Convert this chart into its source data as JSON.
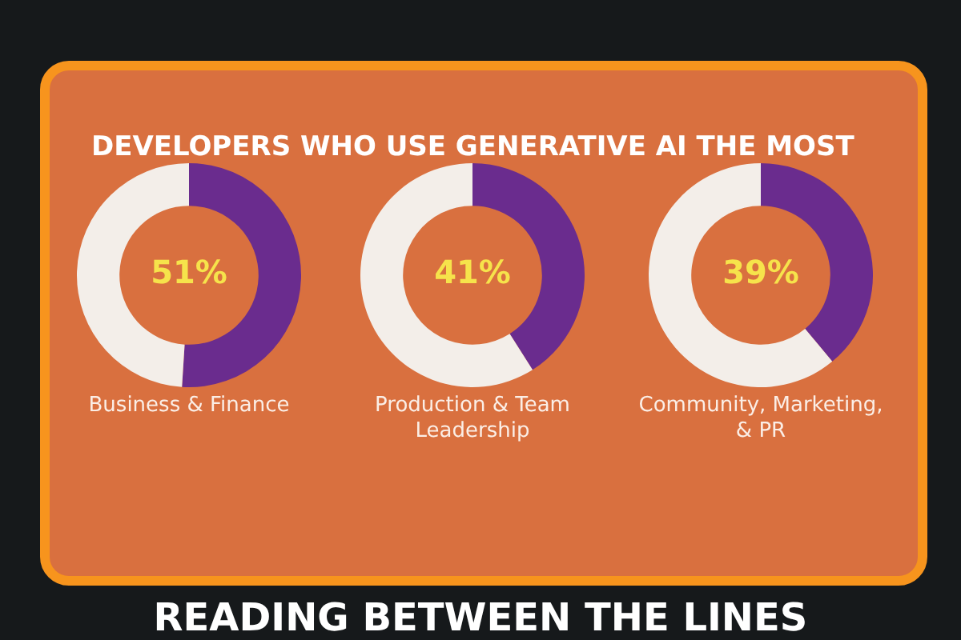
{
  "chart_data": [
    {
      "type": "donut",
      "title": "DEVELOPERS WHO USE GENERATIVE AI THE MOST",
      "xlabel": "Business & Finance",
      "categories": [
        null,
        null
      ],
      "values": [
        51,
        49
      ],
      "colors": [
        "#6a2c8e",
        "#f3eee9"
      ],
      "value_labels": [
        "51%",
        null
      ],
      "annotations": [
        "READING BETWEEN THE LINES"
      ]
    },
    {
      "type": "donut",
      "xlabel": "Production & Team Leadership",
      "categories": [
        null,
        null
      ],
      "values": [
        41,
        59
      ],
      "colors": [
        "#6a2c8e",
        "#f3eee9"
      ],
      "value_labels": [
        "41%",
        null
      ]
    },
    {
      "type": "donut",
      "xlabel": "Community, Marketing, & PR",
      "categories": [
        null,
        null
      ],
      "values": [
        39,
        61
      ],
      "colors": [
        "#6a2c8e",
        "#f3eee9"
      ],
      "value_labels": [
        "39%",
        null
      ]
    }
  ]
}
